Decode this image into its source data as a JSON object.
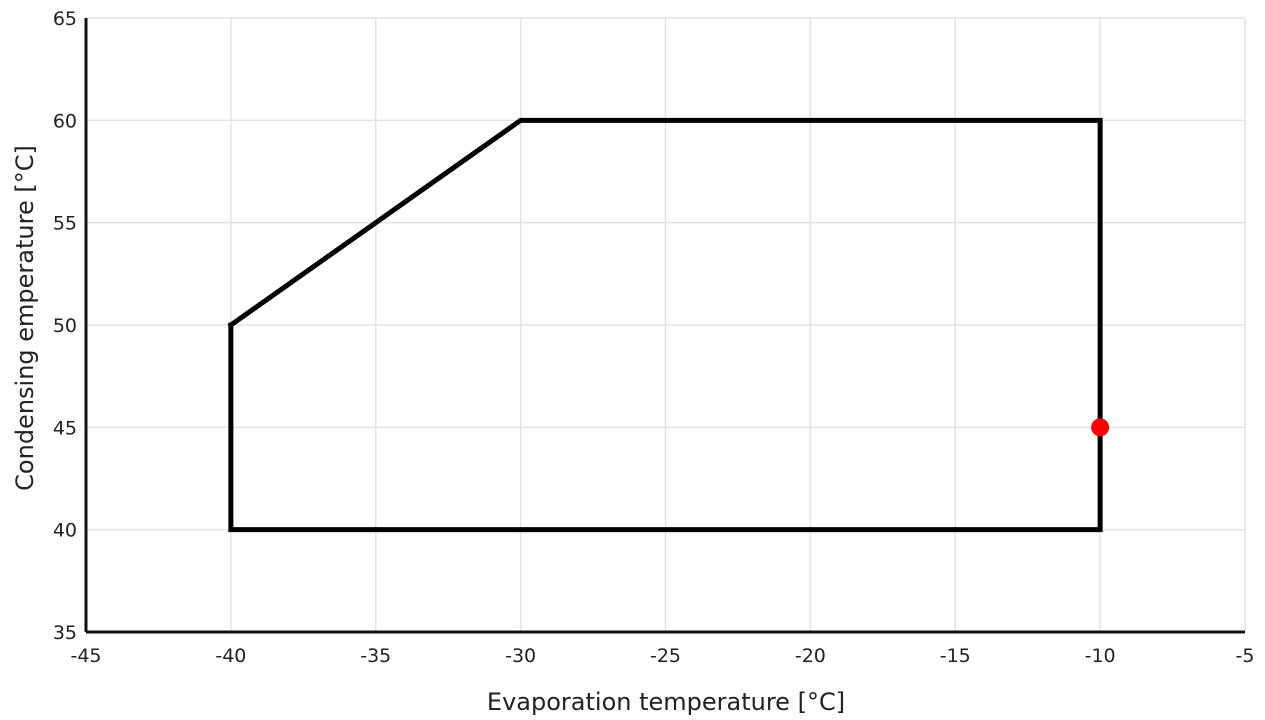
{
  "chart_data": {
    "type": "line",
    "title": "",
    "xlabel": "Evaporation temperature [°C]",
    "ylabel": "Condensing  emperature [°C]",
    "xlim": [
      -45,
      -5
    ],
    "ylim": [
      35,
      65
    ],
    "x_ticks": [
      -45,
      -40,
      -35,
      -30,
      -25,
      -20,
      -15,
      -10,
      -5
    ],
    "y_ticks": [
      35,
      40,
      45,
      50,
      55,
      60,
      65
    ],
    "grid": true,
    "series": [
      {
        "kind": "envelope",
        "x": [
          -40,
          -30,
          -10,
          -10,
          -40,
          -40
        ],
        "y": [
          50,
          60,
          60,
          40,
          40,
          50
        ],
        "color": "#000000"
      },
      {
        "kind": "point",
        "x": [
          -10
        ],
        "y": [
          45
        ],
        "color": "#ff0000"
      }
    ]
  }
}
